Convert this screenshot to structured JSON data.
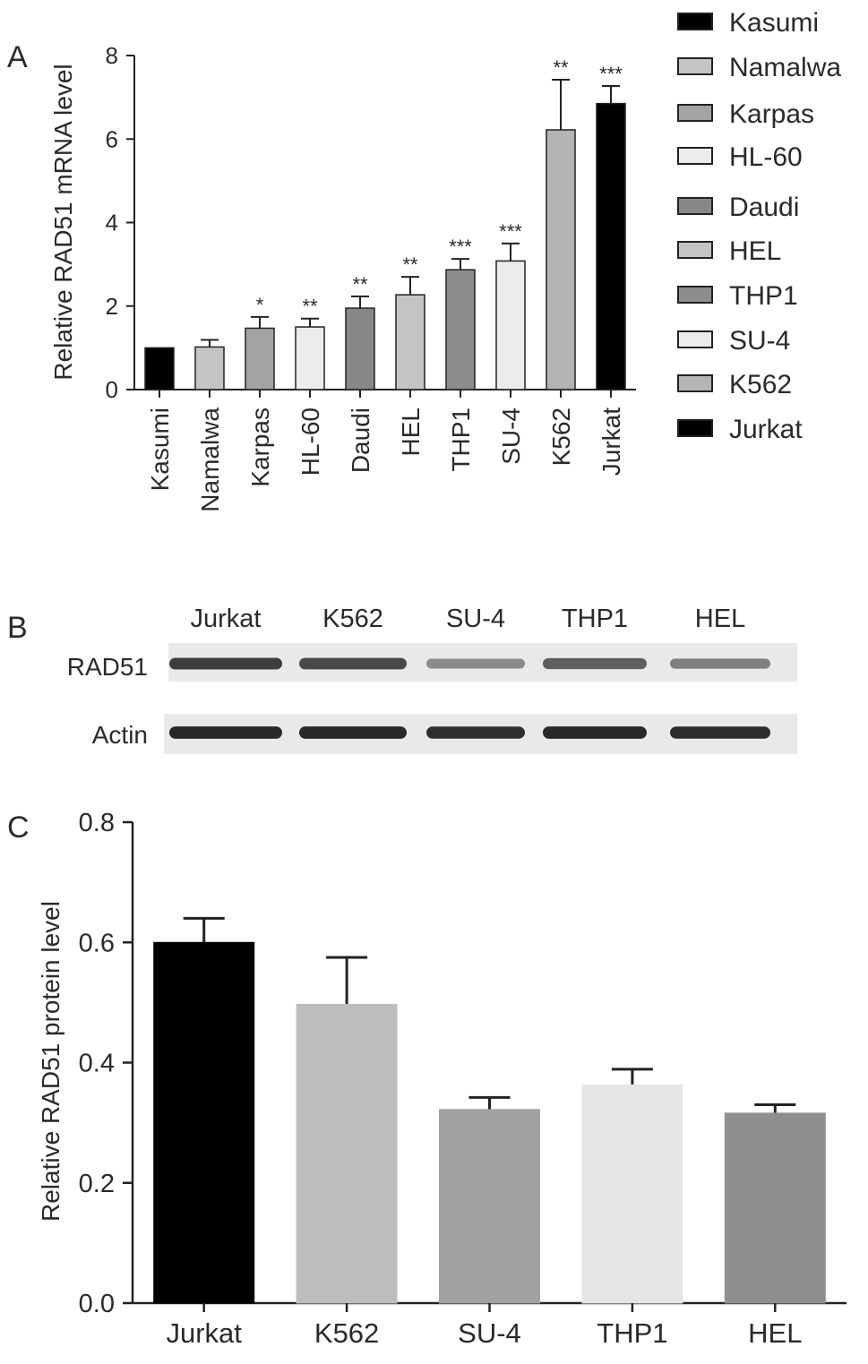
{
  "panels": {
    "a": {
      "label": "A"
    },
    "b": {
      "label": "B"
    },
    "c": {
      "label": "C"
    }
  },
  "chart_data": [
    {
      "type": "bar",
      "ylabel": "Relative RAD51 mRNA level",
      "xlabel": "",
      "ylim": [
        0,
        8
      ],
      "yticks": [
        "0",
        "2",
        "4",
        "6",
        "8"
      ],
      "categories": [
        "Kasumi",
        "Namalwa",
        "Karpas",
        "HL-60",
        "Daudi",
        "HEL",
        "THP1",
        "SU-4",
        "K562",
        "Jurkat"
      ],
      "values": [
        1.0,
        1.02,
        1.47,
        1.5,
        1.95,
        2.27,
        2.87,
        3.08,
        6.22,
        6.85
      ],
      "errors": [
        0.0,
        0.17,
        0.27,
        0.2,
        0.28,
        0.43,
        0.26,
        0.42,
        1.2,
        0.42
      ],
      "significance": [
        "",
        "",
        "*",
        "**",
        "**",
        "**",
        "***",
        "***",
        "**",
        "***"
      ],
      "colors": [
        "#000000",
        "#c4c4c4",
        "#a3a3a3",
        "#ececec",
        "#888888",
        "#c4c4c4",
        "#8c8c8c",
        "#ececec",
        "#b4b4b4",
        "#000000"
      ],
      "legend": {
        "position": "right",
        "entries": [
          "Kasumi",
          "Namalwa",
          "Karpas",
          "HL-60",
          "Daudi",
          "HEL",
          "THP1",
          "SU-4",
          "K562",
          "Jurkat"
        ]
      }
    },
    {
      "type": "blot",
      "lanes": [
        "Jurkat",
        "K562",
        "SU-4",
        "THP1",
        "HEL"
      ],
      "rows": [
        "RAD51",
        "Actin"
      ],
      "band_intensity": {
        "RAD51": [
          0.85,
          0.8,
          0.5,
          0.7,
          0.55
        ],
        "Actin": [
          0.95,
          0.95,
          0.92,
          0.95,
          0.93
        ]
      }
    },
    {
      "type": "bar",
      "ylabel": "Relative RAD51 protein level",
      "xlabel": "",
      "ylim": [
        0,
        0.8
      ],
      "yticks": [
        "0.0",
        "0.2",
        "0.4",
        "0.6",
        "0.8"
      ],
      "categories": [
        "Jurkat",
        "K562",
        "SU-4",
        "THP1",
        "HEL"
      ],
      "values": [
        0.6,
        0.497,
        0.322,
        0.363,
        0.316
      ],
      "errors": [
        0.04,
        0.078,
        0.02,
        0.026,
        0.014
      ],
      "colors": [
        "#000000",
        "#bdbdbd",
        "#a1a1a1",
        "#e5e5e5",
        "#8f8f8f"
      ]
    }
  ]
}
